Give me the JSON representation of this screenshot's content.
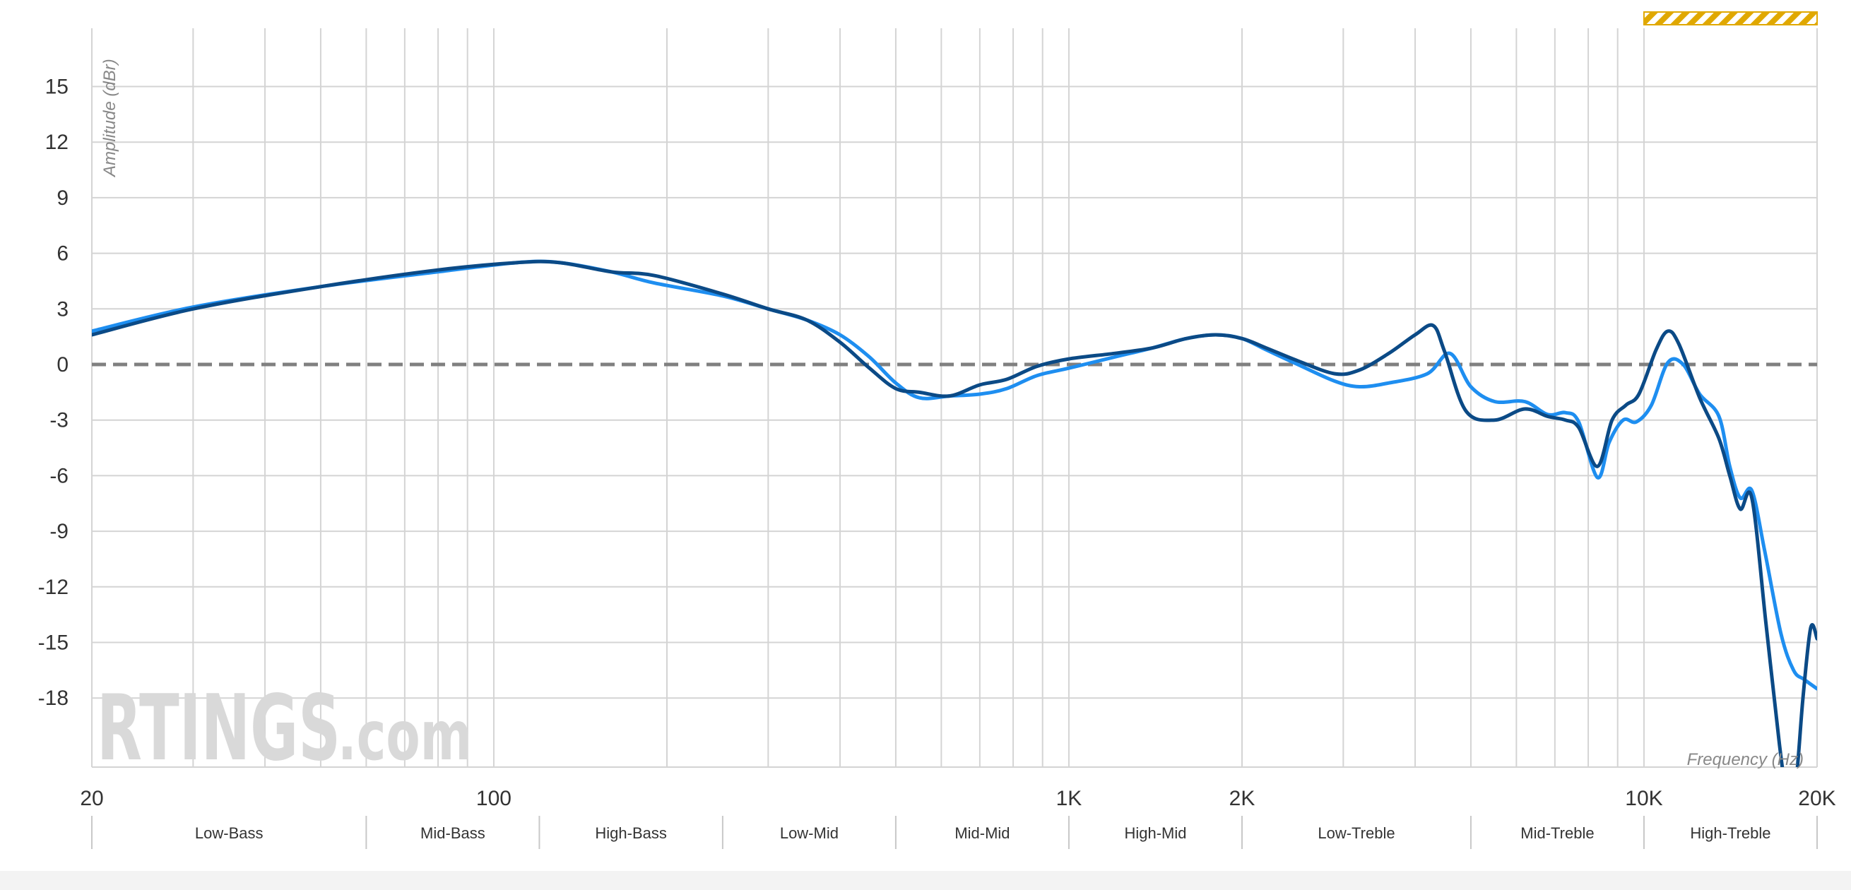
{
  "chart_data": {
    "type": "line",
    "xlabel": "Frequency (Hz)",
    "ylabel": "Amplitude (dBr)",
    "xscale": "log",
    "xlim": [
      20,
      20000
    ],
    "ylim": [
      -23,
      19
    ],
    "x_ticks": [
      {
        "value": 20,
        "label": "20"
      },
      {
        "value": 100,
        "label": "100"
      },
      {
        "value": 1000,
        "label": "1K"
      },
      {
        "value": 2000,
        "label": "2K"
      },
      {
        "value": 10000,
        "label": "10K"
      },
      {
        "value": 20000,
        "label": "20K"
      }
    ],
    "y_ticks": [
      15,
      12,
      9,
      6,
      3,
      0,
      -3,
      -6,
      -9,
      -12,
      -15,
      -18
    ],
    "grid": true,
    "reference_line": {
      "value": 0,
      "style": "dashed",
      "color": "#808080"
    },
    "bands": [
      {
        "label": "Low-Bass",
        "from": 20,
        "to": 60
      },
      {
        "label": "Mid-Bass",
        "from": 60,
        "to": 120
      },
      {
        "label": "High-Bass",
        "from": 120,
        "to": 250
      },
      {
        "label": "Low-Mid",
        "from": 250,
        "to": 500
      },
      {
        "label": "Mid-Mid",
        "from": 500,
        "to": 1000
      },
      {
        "label": "High-Mid",
        "from": 1000,
        "to": 2000
      },
      {
        "label": "Low-Treble",
        "from": 2000,
        "to": 5000
      },
      {
        "label": "Mid-Treble",
        "from": 5000,
        "to": 10000
      },
      {
        "label": "High-Treble",
        "from": 10000,
        "to": 20000
      }
    ],
    "highlight": {
      "from": 10000,
      "to": 20000,
      "color": "#e0a800"
    },
    "series": [
      {
        "color": "#1e8ef0",
        "points": [
          [
            20,
            1.8
          ],
          [
            30,
            3.1
          ],
          [
            50,
            4.2
          ],
          [
            80,
            5.0
          ],
          [
            110,
            5.5
          ],
          [
            130,
            5.5
          ],
          [
            160,
            5.0
          ],
          [
            190,
            4.4
          ],
          [
            250,
            3.7
          ],
          [
            300,
            3.0
          ],
          [
            350,
            2.4
          ],
          [
            400,
            1.6
          ],
          [
            450,
            0.4
          ],
          [
            500,
            -1.0
          ],
          [
            550,
            -1.8
          ],
          [
            620,
            -1.7
          ],
          [
            700,
            -1.6
          ],
          [
            780,
            -1.3
          ],
          [
            880,
            -0.6
          ],
          [
            1000,
            -0.2
          ],
          [
            1200,
            0.4
          ],
          [
            1400,
            0.9
          ],
          [
            1600,
            1.4
          ],
          [
            1800,
            1.6
          ],
          [
            2000,
            1.4
          ],
          [
            2200,
            0.8
          ],
          [
            2500,
            0.0
          ],
          [
            2900,
            -0.9
          ],
          [
            3200,
            -1.2
          ],
          [
            3600,
            -1.0
          ],
          [
            4200,
            -0.5
          ],
          [
            4600,
            0.6
          ],
          [
            5000,
            -1.2
          ],
          [
            5500,
            -2.0
          ],
          [
            6200,
            -2.0
          ],
          [
            6800,
            -2.7
          ],
          [
            7300,
            -2.6
          ],
          [
            7700,
            -3.1
          ],
          [
            8300,
            -6.1
          ],
          [
            8700,
            -4.2
          ],
          [
            9200,
            -3.0
          ],
          [
            9700,
            -3.1
          ],
          [
            10300,
            -2.2
          ],
          [
            11000,
            0.1
          ],
          [
            11700,
            0.0
          ],
          [
            12500,
            -1.6
          ],
          [
            13500,
            -2.8
          ],
          [
            14100,
            -5.5
          ],
          [
            14700,
            -7.2
          ],
          [
            15400,
            -6.8
          ],
          [
            16200,
            -10.0
          ],
          [
            17300,
            -14.5
          ],
          [
            18200,
            -16.5
          ],
          [
            19000,
            -17.0
          ],
          [
            20000,
            -17.5
          ]
        ]
      },
      {
        "color": "#0b4a86",
        "points": [
          [
            20,
            1.6
          ],
          [
            30,
            3.0
          ],
          [
            50,
            4.2
          ],
          [
            80,
            5.1
          ],
          [
            110,
            5.5
          ],
          [
            130,
            5.5
          ],
          [
            160,
            5.0
          ],
          [
            190,
            4.8
          ],
          [
            250,
            3.8
          ],
          [
            300,
            3.0
          ],
          [
            350,
            2.4
          ],
          [
            400,
            1.2
          ],
          [
            450,
            -0.2
          ],
          [
            500,
            -1.3
          ],
          [
            550,
            -1.5
          ],
          [
            620,
            -1.7
          ],
          [
            700,
            -1.1
          ],
          [
            780,
            -0.8
          ],
          [
            880,
            -0.1
          ],
          [
            1000,
            0.3
          ],
          [
            1200,
            0.6
          ],
          [
            1400,
            0.9
          ],
          [
            1600,
            1.4
          ],
          [
            1800,
            1.6
          ],
          [
            2000,
            1.4
          ],
          [
            2200,
            0.9
          ],
          [
            2500,
            0.2
          ],
          [
            2900,
            -0.5
          ],
          [
            3200,
            -0.3
          ],
          [
            3600,
            0.6
          ],
          [
            4000,
            1.6
          ],
          [
            4300,
            2.1
          ],
          [
            4500,
            0.7
          ],
          [
            4900,
            -2.5
          ],
          [
            5500,
            -3.0
          ],
          [
            6200,
            -2.4
          ],
          [
            6800,
            -2.8
          ],
          [
            7300,
            -3.0
          ],
          [
            7700,
            -3.4
          ],
          [
            8300,
            -5.5
          ],
          [
            8800,
            -3.0
          ],
          [
            9300,
            -2.2
          ],
          [
            9800,
            -1.6
          ],
          [
            10500,
            0.8
          ],
          [
            11000,
            1.8
          ],
          [
            11500,
            1.1
          ],
          [
            12500,
            -1.8
          ],
          [
            13500,
            -4.0
          ],
          [
            14100,
            -6.0
          ],
          [
            14700,
            -7.8
          ],
          [
            15400,
            -7.2
          ],
          [
            16300,
            -14.0
          ],
          [
            17200,
            -20.5
          ],
          [
            17700,
            -23.0
          ],
          [
            18300,
            -23.0
          ],
          [
            18900,
            -18.0
          ],
          [
            19500,
            -14.2
          ],
          [
            20000,
            -14.8
          ]
        ]
      }
    ],
    "watermark": {
      "main": "RTINGS",
      "suffix": ".com"
    }
  }
}
